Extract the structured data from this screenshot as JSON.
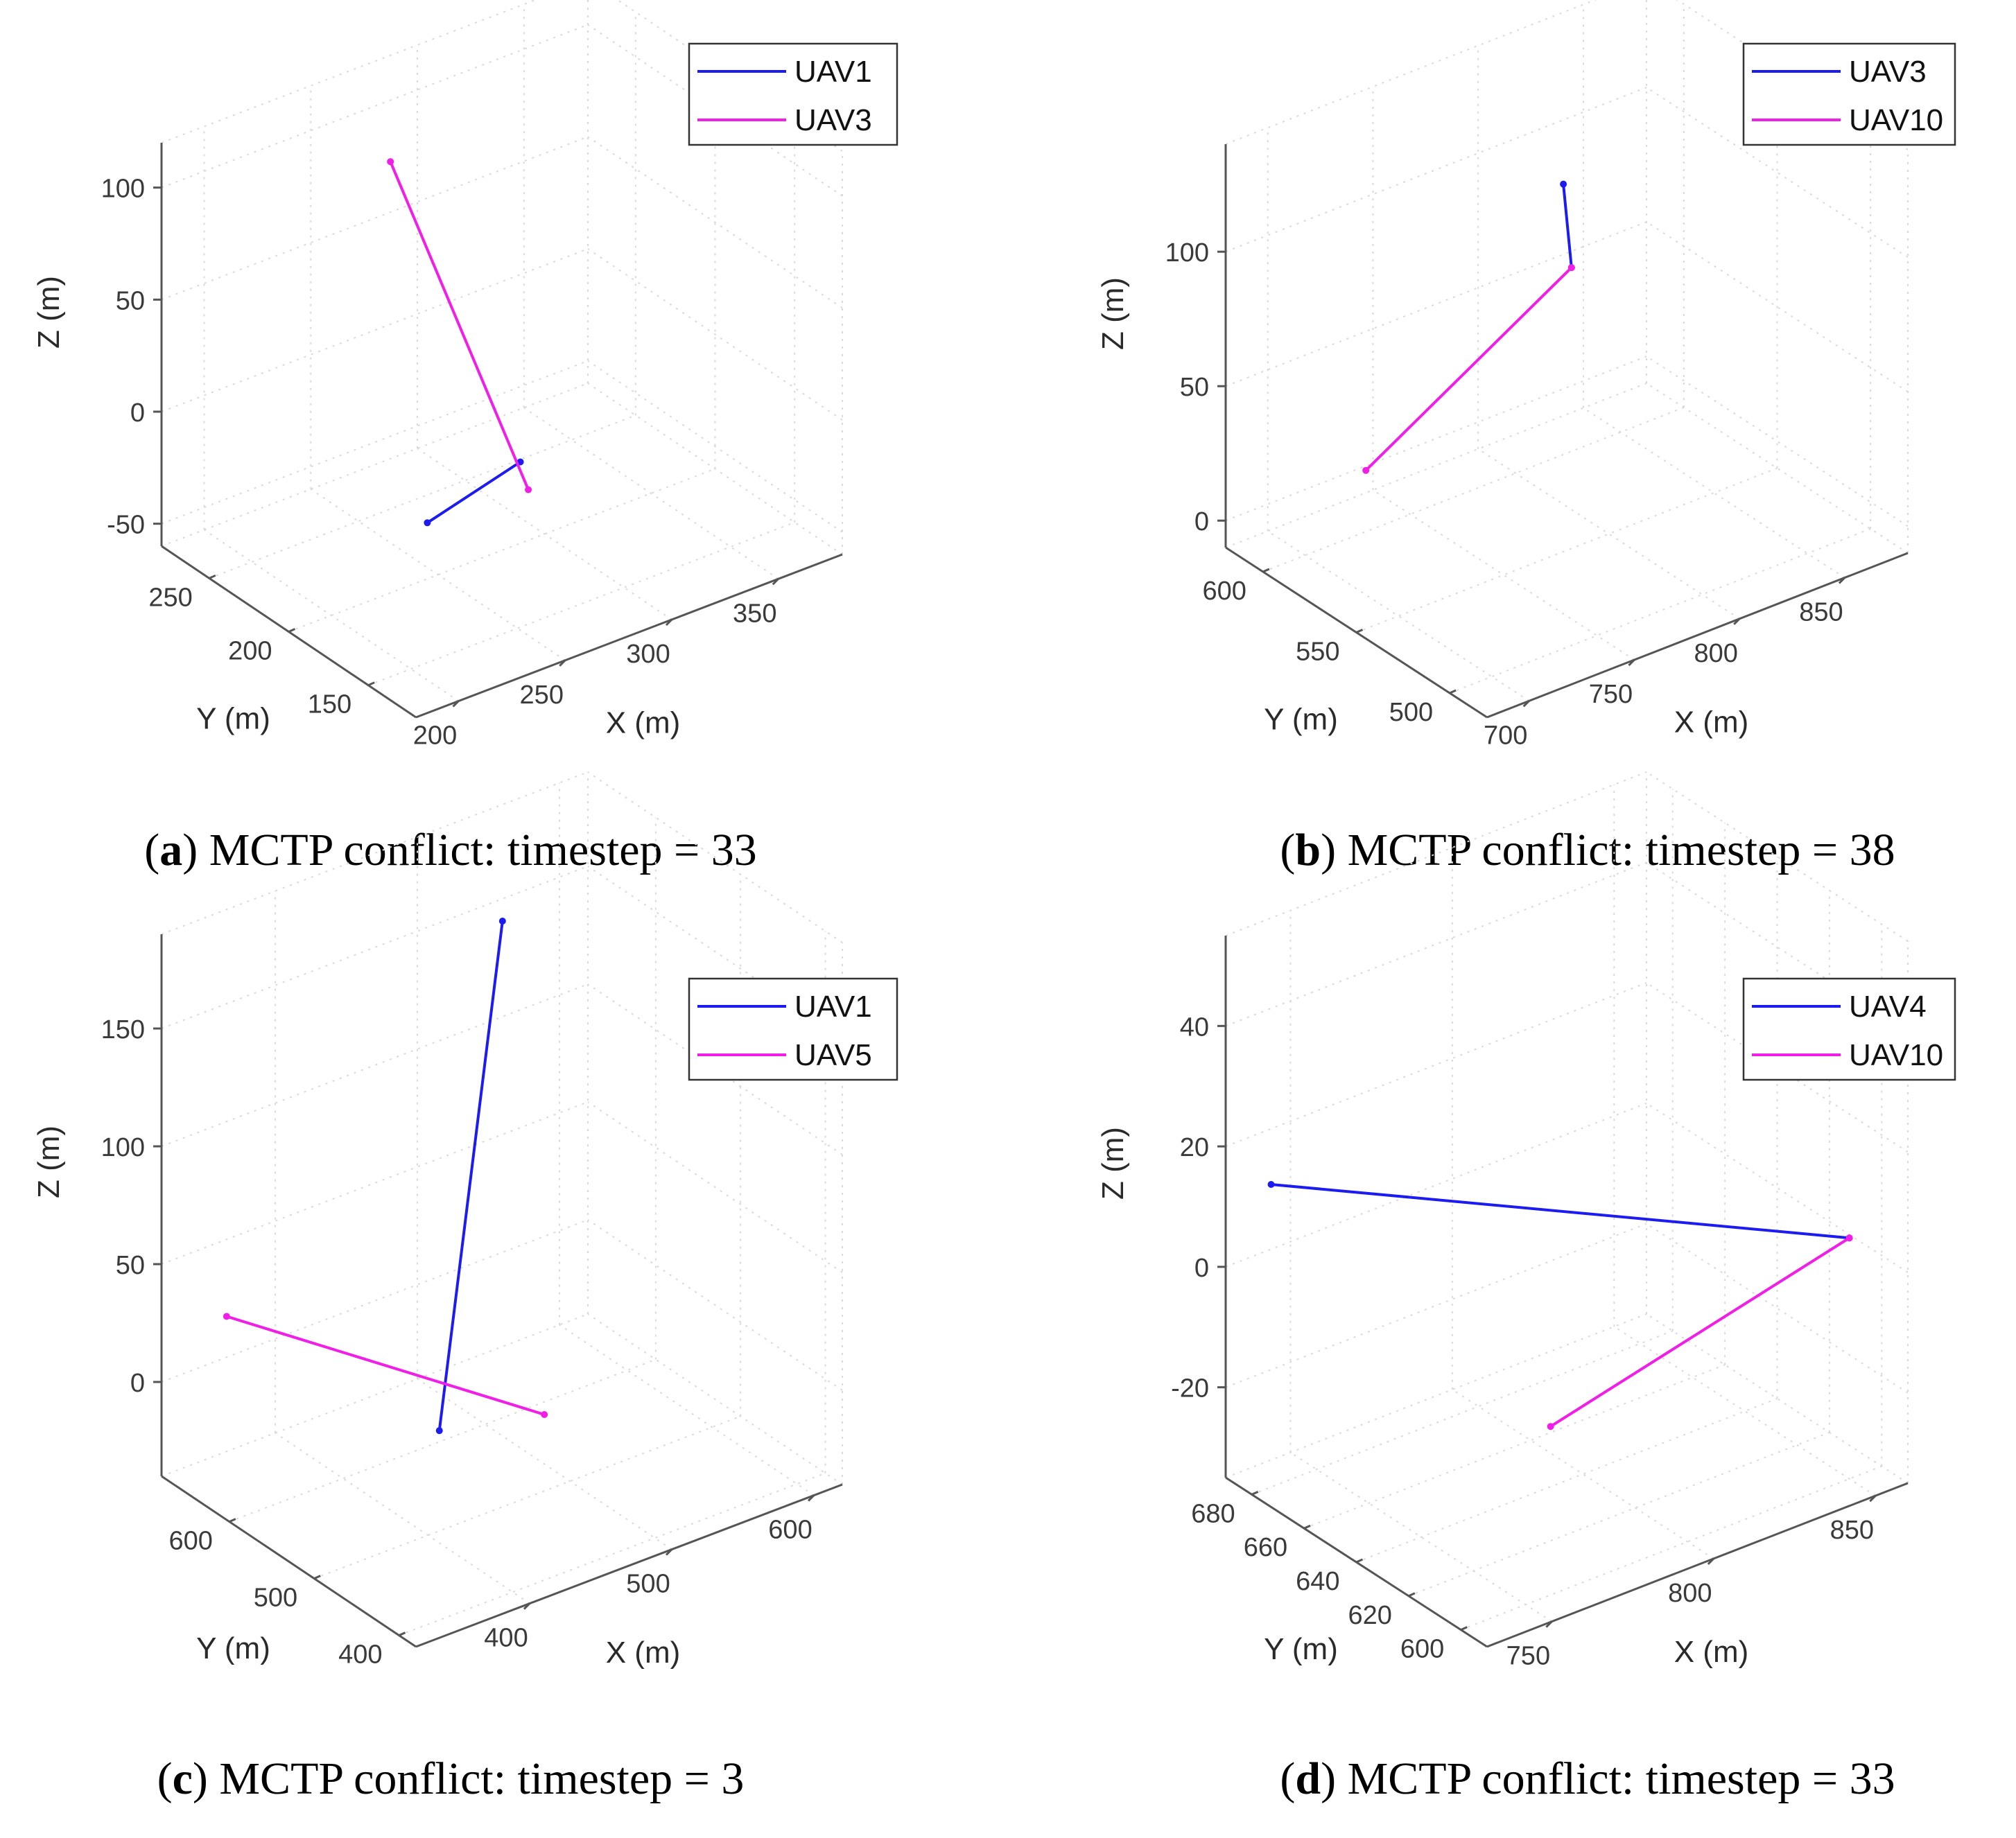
{
  "colors": {
    "series1": "#1c1cf0",
    "series2": "#f01ee6",
    "axis": "#555555",
    "grid": "#d9d9d9"
  },
  "chart_data": [
    {
      "type": "line3d",
      "panel": "a",
      "caption": {
        "letter": "a",
        "text": "MCTP conflict: timestep = 33"
      },
      "xlabel": "X (m)",
      "ylabel": "Y (m)",
      "zlabel": "Z (m)",
      "xlim": [
        180,
        380
      ],
      "ylim": [
        120,
        280
      ],
      "zlim": [
        -60,
        120
      ],
      "xticks": [
        200,
        250,
        300,
        350
      ],
      "yticks": [
        150,
        200,
        250
      ],
      "zticks": [
        -50,
        0,
        50,
        100
      ],
      "xtick_labels": [
        "200",
        "250",
        "300",
        "350"
      ],
      "ytick_labels": [
        "150",
        "200",
        "250"
      ],
      "ztick_labels": [
        "-50",
        "0",
        "50",
        "100"
      ],
      "legend_position": "top-right",
      "series": [
        {
          "name": "UAV1",
          "points": [
            [
              245,
              200,
              -35
            ],
            [
              270,
              175,
              -5
            ]
          ]
        },
        {
          "name": "UAV3",
          "points": [
            [
              270,
              170,
              -15
            ],
            [
              265,
              250,
              95
            ]
          ]
        }
      ]
    },
    {
      "type": "line3d",
      "panel": "b",
      "caption": {
        "letter": "b",
        "text": "MCTP conflict: timestep = 38"
      },
      "xlabel": "X (m)",
      "ylabel": "Y (m)",
      "zlabel": "Z (m)",
      "xlim": [
        680,
        880
      ],
      "ylim": [
        480,
        620
      ],
      "zlim": [
        -10,
        140
      ],
      "xticks": [
        700,
        750,
        800,
        850
      ],
      "yticks": [
        500,
        550,
        600
      ],
      "zticks": [
        0,
        50,
        100
      ],
      "xtick_labels": [
        "700",
        "750",
        "800",
        "850"
      ],
      "ytick_labels": [
        "500",
        "550",
        "600"
      ],
      "ztick_labels": [
        "0",
        "50",
        "100"
      ],
      "legend_position": "top-right",
      "series": [
        {
          "name": "UAV3",
          "points": [
            [
              800,
              570,
              80
            ],
            [
              805,
              580,
              105
            ]
          ]
        },
        {
          "name": "UAV10",
          "points": [
            [
              720,
              590,
              20
            ],
            [
              800,
              570,
              80
            ]
          ]
        }
      ]
    },
    {
      "type": "line3d",
      "panel": "c",
      "caption": {
        "letter": "c",
        "text": "MCTP conflict: timestep = 3"
      },
      "xlabel": "X (m)",
      "ylabel": "Y (m)",
      "zlabel": "Z (m)",
      "xlim": [
        320,
        620
      ],
      "ylim": [
        380,
        680
      ],
      "zlim": [
        -40,
        190
      ],
      "xticks": [
        400,
        500,
        600
      ],
      "yticks": [
        400,
        500,
        600
      ],
      "zticks": [
        0,
        50,
        100,
        150
      ],
      "xtick_labels": [
        "400",
        "500",
        "600"
      ],
      "ytick_labels": [
        "400",
        "500",
        "600"
      ],
      "ztick_labels": [
        "0",
        "50",
        "100",
        "150"
      ],
      "legend_position": "top-right",
      "series": [
        {
          "name": "UAV1",
          "points": [
            [
              420,
              520,
              -5
            ],
            [
              545,
              655,
              150
            ]
          ]
        },
        {
          "name": "UAV5",
          "points": [
            [
              330,
              620,
              40
            ],
            [
              470,
              480,
              0
            ]
          ]
        }
      ]
    },
    {
      "type": "line3d",
      "panel": "d",
      "caption": {
        "letter": "d",
        "text": "MCTP conflict: timestep = 33"
      },
      "xlabel": "X (m)",
      "ylabel": "Y (m)",
      "zlabel": "Z (m)",
      "xlim": [
        730,
        860
      ],
      "ylim": [
        590,
        690
      ],
      "zlim": [
        -35,
        55
      ],
      "xticks": [
        750,
        800,
        850
      ],
      "yticks": [
        600,
        620,
        640,
        660,
        680
      ],
      "zticks": [
        -20,
        0,
        20,
        40
      ],
      "xtick_labels": [
        "750",
        "800",
        "850"
      ],
      "ytick_labels": [
        "600",
        "620",
        "640",
        "660",
        "680"
      ],
      "ztick_labels": [
        "-20",
        "0",
        "20",
        "40"
      ],
      "legend_position": "top-right",
      "series": [
        {
          "name": "UAV4",
          "points": [
            [
              740,
              685,
              13
            ],
            [
              850,
              600,
              5
            ]
          ]
        },
        {
          "name": "UAV10",
          "points": [
            [
              790,
              640,
              -25
            ],
            [
              850,
              600,
              5
            ]
          ]
        }
      ]
    }
  ]
}
